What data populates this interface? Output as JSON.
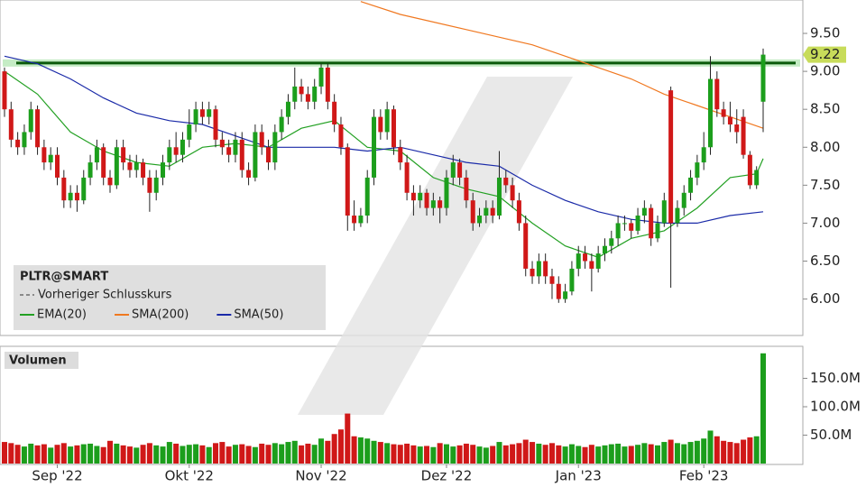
{
  "chart_data": {
    "type": "candlestick",
    "symbol": "PLTR@SMART",
    "prev_close_label": "Vorheriger Schlusskurs",
    "volume_label": "Volumen",
    "up_color": "#1c9e1c",
    "down_color": "#d01818",
    "ylim": [
      5.52,
      9.94
    ],
    "yticks": [
      {
        "value": 6,
        "label": "6.00"
      },
      {
        "value": 6.5,
        "label": "6.50"
      },
      {
        "value": 7,
        "label": "7.00"
      },
      {
        "value": 7.5,
        "label": "7.50"
      },
      {
        "value": 8,
        "label": "8.00"
      },
      {
        "value": 8.5,
        "label": "8.50"
      },
      {
        "value": 9,
        "label": "9.00"
      },
      {
        "value": 9.5,
        "label": "9.50"
      }
    ],
    "vlim": [
      0,
      200000000
    ],
    "vticks": [
      {
        "value": 50000000,
        "label": "50.0M"
      },
      {
        "value": 100000000,
        "label": "100.0M"
      },
      {
        "value": 150000000,
        "label": "150.0M"
      }
    ],
    "xticks": [
      {
        "value": 8,
        "label": "Sep '22"
      },
      {
        "value": 28,
        "label": "Okt '22"
      },
      {
        "value": 48,
        "label": "Nov '22"
      },
      {
        "value": 67,
        "label": "Dez '22"
      },
      {
        "value": 87,
        "label": "Jan '23"
      },
      {
        "value": 106,
        "label": "Feb '23"
      }
    ],
    "hline": {
      "value": 9.11,
      "color": "#0a5a0a"
    },
    "candles": [
      [
        9.0,
        9.05,
        8.4,
        8.5
      ],
      [
        8.5,
        8.6,
        8.0,
        8.1
      ],
      [
        8.1,
        8.2,
        7.9,
        8.0
      ],
      [
        8.0,
        8.3,
        7.9,
        8.2
      ],
      [
        8.2,
        8.6,
        8.1,
        8.5
      ],
      [
        8.5,
        8.55,
        7.9,
        8.0
      ],
      [
        8.0,
        8.1,
        7.7,
        7.8
      ],
      [
        7.8,
        8.0,
        7.7,
        7.9
      ],
      [
        7.9,
        8.0,
        7.5,
        7.6
      ],
      [
        7.6,
        7.7,
        7.2,
        7.3
      ],
      [
        7.3,
        7.5,
        7.2,
        7.4
      ],
      [
        7.4,
        7.5,
        7.15,
        7.3
      ],
      [
        7.3,
        7.7,
        7.25,
        7.6
      ],
      [
        7.6,
        7.9,
        7.5,
        7.8
      ],
      [
        7.8,
        8.1,
        7.7,
        8.0
      ],
      [
        8.0,
        8.05,
        7.5,
        7.6
      ],
      [
        7.6,
        7.7,
        7.4,
        7.5
      ],
      [
        7.5,
        8.1,
        7.45,
        8.0
      ],
      [
        8.0,
        8.1,
        7.7,
        7.8
      ],
      [
        7.8,
        7.9,
        7.6,
        7.7
      ],
      [
        7.7,
        7.9,
        7.6,
        7.8
      ],
      [
        7.8,
        7.85,
        7.5,
        7.6
      ],
      [
        7.6,
        7.7,
        7.15,
        7.4
      ],
      [
        7.4,
        7.7,
        7.3,
        7.6
      ],
      [
        7.6,
        7.9,
        7.5,
        7.8
      ],
      [
        7.8,
        8.1,
        7.7,
        8.0
      ],
      [
        8.0,
        8.2,
        7.8,
        7.9
      ],
      [
        7.9,
        8.2,
        7.8,
        8.1
      ],
      [
        8.1,
        8.5,
        8.0,
        8.3
      ],
      [
        8.3,
        8.6,
        8.2,
        8.5
      ],
      [
        8.5,
        8.6,
        8.3,
        8.4
      ],
      [
        8.4,
        8.6,
        8.3,
        8.5
      ],
      [
        8.5,
        8.55,
        8.0,
        8.1
      ],
      [
        8.1,
        8.2,
        7.9,
        8.0
      ],
      [
        8.0,
        8.1,
        7.8,
        7.9
      ],
      [
        7.9,
        8.2,
        7.8,
        8.1
      ],
      [
        8.1,
        8.2,
        7.6,
        7.7
      ],
      [
        7.7,
        7.8,
        7.5,
        7.6
      ],
      [
        7.6,
        8.3,
        7.55,
        8.2
      ],
      [
        8.2,
        8.3,
        7.9,
        8.0
      ],
      [
        8.0,
        8.1,
        7.7,
        7.8
      ],
      [
        7.8,
        8.3,
        7.7,
        8.2
      ],
      [
        8.2,
        8.5,
        8.1,
        8.4
      ],
      [
        8.4,
        8.7,
        8.3,
        8.6
      ],
      [
        8.6,
        9.05,
        8.5,
        8.8
      ],
      [
        8.8,
        8.9,
        8.6,
        8.7
      ],
      [
        8.7,
        8.8,
        8.5,
        8.6
      ],
      [
        8.6,
        8.9,
        8.5,
        8.8
      ],
      [
        8.8,
        9.1,
        8.7,
        9.05
      ],
      [
        9.05,
        9.1,
        8.5,
        8.6
      ],
      [
        8.6,
        8.7,
        8.2,
        8.3
      ],
      [
        8.3,
        8.4,
        7.9,
        8.0
      ],
      [
        8.0,
        8.05,
        6.9,
        7.1
      ],
      [
        7.1,
        7.3,
        6.9,
        7.0
      ],
      [
        7.0,
        7.2,
        6.95,
        7.1
      ],
      [
        7.1,
        7.7,
        7.0,
        7.6
      ],
      [
        7.6,
        8.5,
        7.5,
        8.4
      ],
      [
        8.4,
        8.5,
        8.1,
        8.2
      ],
      [
        8.2,
        8.6,
        8.1,
        8.5
      ],
      [
        8.5,
        8.55,
        7.9,
        8.0
      ],
      [
        8.0,
        8.1,
        7.7,
        7.8
      ],
      [
        7.8,
        7.9,
        7.3,
        7.4
      ],
      [
        7.4,
        7.5,
        7.1,
        7.3
      ],
      [
        7.3,
        7.5,
        7.2,
        7.4
      ],
      [
        7.4,
        7.45,
        7.1,
        7.2
      ],
      [
        7.2,
        7.4,
        7.1,
        7.3
      ],
      [
        7.3,
        7.35,
        7.0,
        7.2
      ],
      [
        7.2,
        7.7,
        7.1,
        7.6
      ],
      [
        7.6,
        7.9,
        7.5,
        7.8
      ],
      [
        7.8,
        7.85,
        7.5,
        7.6
      ],
      [
        7.6,
        7.7,
        7.2,
        7.3
      ],
      [
        7.3,
        7.4,
        6.9,
        7.0
      ],
      [
        7.0,
        7.2,
        6.95,
        7.1
      ],
      [
        7.1,
        7.3,
        7.0,
        7.2
      ],
      [
        7.2,
        7.3,
        7.0,
        7.1
      ],
      [
        7.1,
        7.95,
        7.05,
        7.6
      ],
      [
        7.6,
        7.7,
        7.4,
        7.5
      ],
      [
        7.5,
        7.6,
        7.2,
        7.3
      ],
      [
        7.3,
        7.4,
        6.9,
        7.0
      ],
      [
        7.0,
        7.1,
        6.3,
        6.4
      ],
      [
        6.4,
        6.5,
        6.2,
        6.3
      ],
      [
        6.3,
        6.6,
        6.2,
        6.5
      ],
      [
        6.5,
        6.6,
        6.2,
        6.3
      ],
      [
        6.3,
        6.4,
        6.0,
        6.2
      ],
      [
        6.2,
        6.3,
        5.95,
        6.0
      ],
      [
        6.0,
        6.2,
        5.95,
        6.1
      ],
      [
        6.1,
        6.5,
        6.05,
        6.4
      ],
      [
        6.4,
        6.7,
        6.3,
        6.6
      ],
      [
        6.6,
        6.7,
        6.4,
        6.5
      ],
      [
        6.5,
        6.6,
        6.1,
        6.4
      ],
      [
        6.4,
        6.7,
        6.35,
        6.6
      ],
      [
        6.6,
        6.8,
        6.5,
        6.7
      ],
      [
        6.7,
        6.9,
        6.6,
        6.8
      ],
      [
        6.8,
        7.1,
        6.7,
        7.0
      ],
      [
        7.0,
        7.1,
        6.9,
        7.0
      ],
      [
        7.0,
        7.05,
        6.8,
        6.9
      ],
      [
        6.9,
        7.2,
        6.85,
        7.1
      ],
      [
        7.1,
        7.3,
        7.0,
        7.2
      ],
      [
        7.2,
        7.25,
        6.7,
        6.8
      ],
      [
        6.8,
        7.1,
        6.75,
        7.0
      ],
      [
        7.0,
        7.4,
        6.95,
        7.3
      ],
      [
        8.75,
        8.8,
        6.15,
        7.0
      ],
      [
        7.0,
        7.3,
        6.95,
        7.2
      ],
      [
        7.2,
        7.5,
        7.1,
        7.4
      ],
      [
        7.4,
        7.7,
        7.3,
        7.6
      ],
      [
        7.6,
        7.9,
        7.5,
        7.8
      ],
      [
        7.8,
        8.2,
        7.7,
        8.0
      ],
      [
        8.0,
        9.2,
        7.9,
        8.9
      ],
      [
        8.9,
        9.0,
        8.4,
        8.5
      ],
      [
        8.5,
        8.6,
        8.3,
        8.4
      ],
      [
        8.4,
        8.6,
        8.2,
        8.3
      ],
      [
        8.3,
        8.5,
        8.05,
        8.2
      ],
      [
        8.4,
        8.5,
        7.85,
        7.9
      ],
      [
        7.9,
        7.95,
        7.45,
        7.5
      ],
      [
        7.5,
        7.75,
        7.45,
        7.7
      ],
      [
        8.6,
        9.3,
        8.2,
        9.22
      ]
    ],
    "volumes": [
      38000000,
      36000000,
      33000000,
      30000000,
      35000000,
      32000000,
      34000000,
      28000000,
      33000000,
      36000000,
      30000000,
      32000000,
      34000000,
      35000000,
      31000000,
      29000000,
      40000000,
      35000000,
      32000000,
      30000000,
      28000000,
      33000000,
      36000000,
      32000000,
      30000000,
      38000000,
      35000000,
      31000000,
      33000000,
      34000000,
      32000000,
      29000000,
      36000000,
      38000000,
      30000000,
      33000000,
      34000000,
      31000000,
      29000000,
      35000000,
      33000000,
      36000000,
      34000000,
      38000000,
      40000000,
      32000000,
      35000000,
      33000000,
      44000000,
      40000000,
      52000000,
      60000000,
      88000000,
      48000000,
      46000000,
      44000000,
      40000000,
      38000000,
      36000000,
      34000000,
      33000000,
      35000000,
      32000000,
      30000000,
      31000000,
      29000000,
      36000000,
      34000000,
      30000000,
      32000000,
      35000000,
      33000000,
      30000000,
      28000000,
      31000000,
      38000000,
      32000000,
      34000000,
      36000000,
      42000000,
      38000000,
      35000000,
      33000000,
      36000000,
      32000000,
      30000000,
      34000000,
      31000000,
      29000000,
      33000000,
      30000000,
      32000000,
      34000000,
      35000000,
      30000000,
      31000000,
      33000000,
      36000000,
      34000000,
      32000000,
      38000000,
      42000000,
      36000000,
      34000000,
      38000000,
      40000000,
      44000000,
      58000000,
      48000000,
      40000000,
      38000000,
      36000000,
      42000000,
      46000000,
      48000000,
      194000000
    ],
    "series": [
      {
        "name": "EMA(20)",
        "color": "#22a022",
        "x": [
          0,
          5,
          10,
          15,
          20,
          25,
          30,
          35,
          40,
          45,
          50,
          55,
          60,
          65,
          70,
          75,
          80,
          85,
          90,
          95,
          100,
          105,
          110,
          114,
          115
        ],
        "values": [
          9.0,
          8.7,
          8.2,
          7.95,
          7.8,
          7.75,
          8.0,
          8.05,
          8.0,
          8.25,
          8.35,
          8.0,
          7.95,
          7.6,
          7.45,
          7.35,
          7.0,
          6.7,
          6.55,
          6.8,
          6.9,
          7.2,
          7.6,
          7.65,
          7.85
        ]
      },
      {
        "name": "SMA(200)",
        "color": "#f07820",
        "x": [
          54,
          60,
          70,
          80,
          90,
          95,
          100,
          105,
          110,
          115
        ],
        "values": [
          9.92,
          9.75,
          9.55,
          9.35,
          9.05,
          8.9,
          8.7,
          8.55,
          8.4,
          8.25
        ]
      },
      {
        "name": "SMA(50)",
        "color": "#1a2aa8",
        "x": [
          0,
          5,
          10,
          15,
          20,
          25,
          30,
          35,
          40,
          45,
          50,
          55,
          60,
          65,
          70,
          75,
          80,
          85,
          90,
          95,
          100,
          105,
          110,
          115
        ],
        "values": [
          9.2,
          9.1,
          8.9,
          8.65,
          8.45,
          8.35,
          8.3,
          8.15,
          8.0,
          8.0,
          8.0,
          7.95,
          8.0,
          7.9,
          7.8,
          7.75,
          7.5,
          7.3,
          7.15,
          7.05,
          7.0,
          7.0,
          7.1,
          7.15
        ]
      }
    ]
  }
}
